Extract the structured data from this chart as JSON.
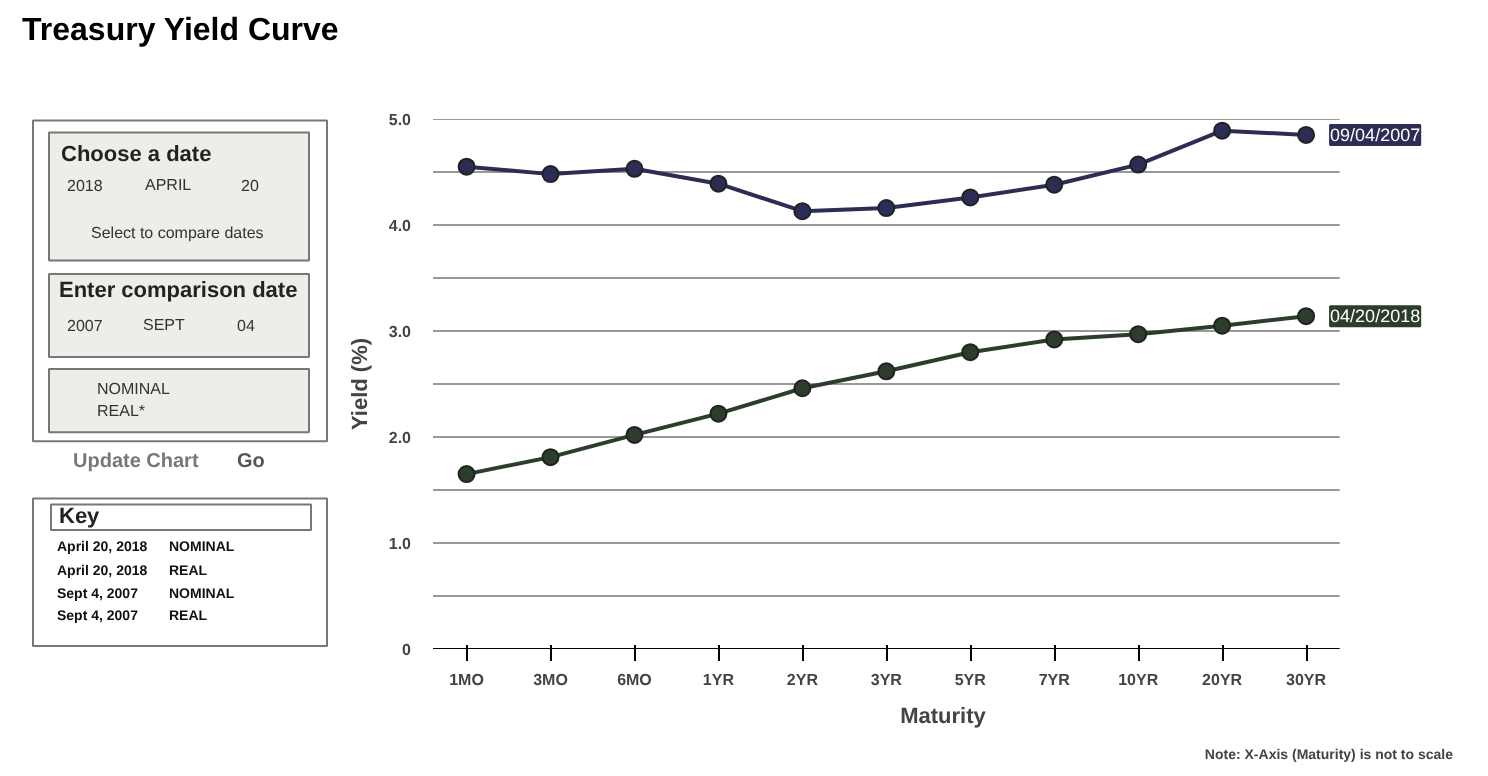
{
  "chart_data": [
    {
      "type": "other",
      "annotations": [
        "Choose a date",
        "2018",
        "APRIL",
        "20",
        "Select to compare dates",
        "Enter comparison date",
        "2007",
        "SEPT",
        "04",
        "NOMINAL",
        "REAL*",
        "Update Chart",
        "Go",
        "Key",
        "April 20, 2018",
        "NOMINAL",
        "April 20, 2018",
        "REAL",
        "Sept 4, 2007",
        "NOMINAL",
        "Sept 4, 2007",
        "REAL"
      ]
    },
    {
      "type": "line",
      "title": "Treasury Yield Curve",
      "xlabel": "Maturity",
      "ylabel": "Yield (%)",
      "annotations": [
        "Note: X-Axis (Maturity) is not to scale"
      ],
      "categories": [
        "1MO",
        "3MO",
        "6MO",
        "1YR",
        "2YR",
        "3YR",
        "5YR",
        "7YR",
        "10YR",
        "20YR",
        "30YR"
      ],
      "series": [
        {
          "name": "09/04/2007",
          "color": "#2b2d55",
          "values": [
            4.55,
            4.48,
            4.53,
            4.39,
            4.13,
            4.16,
            4.26,
            4.38,
            4.57,
            4.89,
            4.85
          ]
        },
        {
          "name": "04/20/2018",
          "color": "#2c3d2c",
          "values": [
            1.65,
            1.81,
            2.02,
            2.22,
            2.46,
            2.62,
            2.8,
            2.92,
            2.97,
            3.05,
            3.14
          ]
        }
      ],
      "ylim": [
        0,
        5
      ],
      "yticks": [
        0,
        {
          "value": 0.5,
          "label": null
        },
        {
          "value": 1,
          "label": "1.0"
        },
        {
          "value": 1.5,
          "label": null
        },
        {
          "value": 2,
          "label": "2.0"
        },
        {
          "value": 2.5,
          "label": null
        },
        {
          "value": 3,
          "label": "3.0"
        },
        {
          "value": 3.5,
          "label": null
        },
        {
          "value": 4,
          "label": "4.0"
        },
        {
          "value": 4.5,
          "label": null
        },
        {
          "value": 5,
          "label": "5.0"
        }
      ],
      "grid": "y",
      "marker": "circle",
      "line_style": "solid"
    }
  ]
}
